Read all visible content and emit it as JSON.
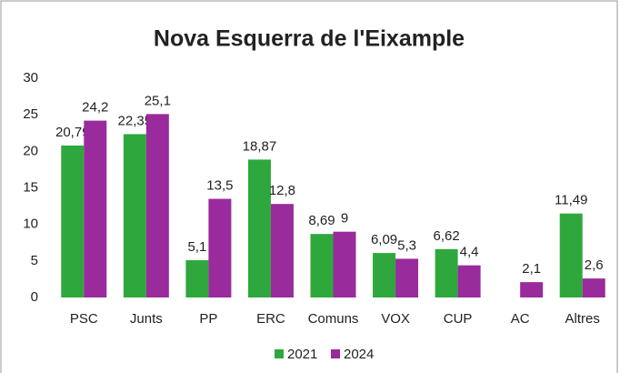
{
  "chart_data": {
    "type": "bar",
    "title": "Nova Esquerra de l'Eixample",
    "categories": [
      "PSC",
      "Junts",
      "PP",
      "ERC",
      "Comuns",
      "VOX",
      "CUP",
      "AC",
      "Altres"
    ],
    "series": [
      {
        "name": "2021",
        "color": "#2ea83c",
        "values": [
          20.79,
          22.35,
          5.1,
          18.87,
          8.69,
          6.09,
          6.62,
          null,
          11.49
        ],
        "value_labels": [
          "20,79",
          "22,35",
          "5,1",
          "18,87",
          "8,69",
          "6,09",
          "6,62",
          null,
          "11,49"
        ]
      },
      {
        "name": "2024",
        "color": "#9a2b9c",
        "values": [
          24.2,
          25.1,
          13.5,
          12.8,
          9,
          5.3,
          4.4,
          2.1,
          2.6
        ],
        "value_labels": [
          "24,2",
          "25,1",
          "13,5",
          "12,8",
          "9",
          "5,3",
          "4,4",
          "2,1",
          "2,6"
        ]
      }
    ],
    "ylim": [
      0,
      30
    ],
    "yticks": [
      0,
      5,
      10,
      15,
      20,
      25,
      30
    ],
    "grid": false,
    "legend": "bottom"
  }
}
